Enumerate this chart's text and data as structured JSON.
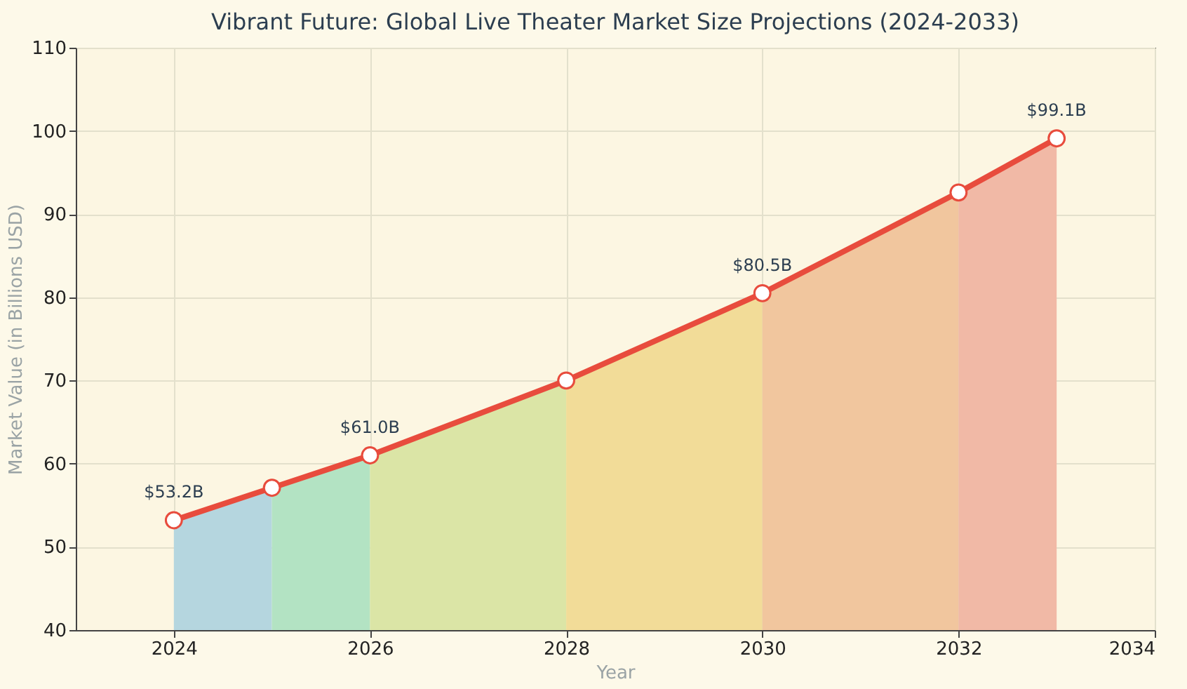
{
  "chart_data": {
    "type": "line",
    "title": "Vibrant Future: Global Live Theater Market Size Projections (2024-2033)",
    "xlabel": "Year",
    "ylabel": "Market Value (in Billions USD)",
    "xlim": [
      2023,
      2034
    ],
    "xticks": [
      2024,
      2026,
      2028,
      2030,
      2032,
      2034
    ],
    "ylim": [
      40,
      110
    ],
    "yticks": [
      40,
      50,
      60,
      70,
      80,
      90,
      100,
      110
    ],
    "grid": true,
    "line_style": "solid",
    "series": [
      {
        "type": "area",
        "color": "#b5d6df",
        "x": [
          2024,
          2025
        ],
        "values": [
          53.2,
          57.1
        ]
      },
      {
        "type": "area",
        "color": "#b3e3c3",
        "x": [
          2025,
          2026
        ],
        "values": [
          57.1,
          61.0
        ]
      },
      {
        "type": "area",
        "color": "#dbe5a6",
        "x": [
          2026,
          2028
        ],
        "values": [
          61.0,
          70.0
        ]
      },
      {
        "type": "area",
        "color": "#f2dc98",
        "x": [
          2028,
          2030
        ],
        "values": [
          70.0,
          80.5
        ]
      },
      {
        "type": "area",
        "color": "#f1c69e",
        "x": [
          2030,
          2032
        ],
        "values": [
          80.5,
          92.6
        ]
      },
      {
        "type": "area",
        "color": "#f1b9a6",
        "x": [
          2032,
          2033
        ],
        "values": [
          92.6,
          99.1
        ]
      },
      {
        "marker": "circle",
        "color": "#e84c3d",
        "x": [
          2024,
          2025,
          2026,
          2028,
          2030,
          2032,
          2033
        ],
        "values": [
          53.2,
          57.1,
          61.0,
          70.0,
          80.5,
          92.6,
          99.1
        ],
        "value_labels": [
          "$53.2B",
          null,
          "$61.0B",
          null,
          "$80.5B",
          null,
          "$99.1B"
        ]
      }
    ]
  }
}
